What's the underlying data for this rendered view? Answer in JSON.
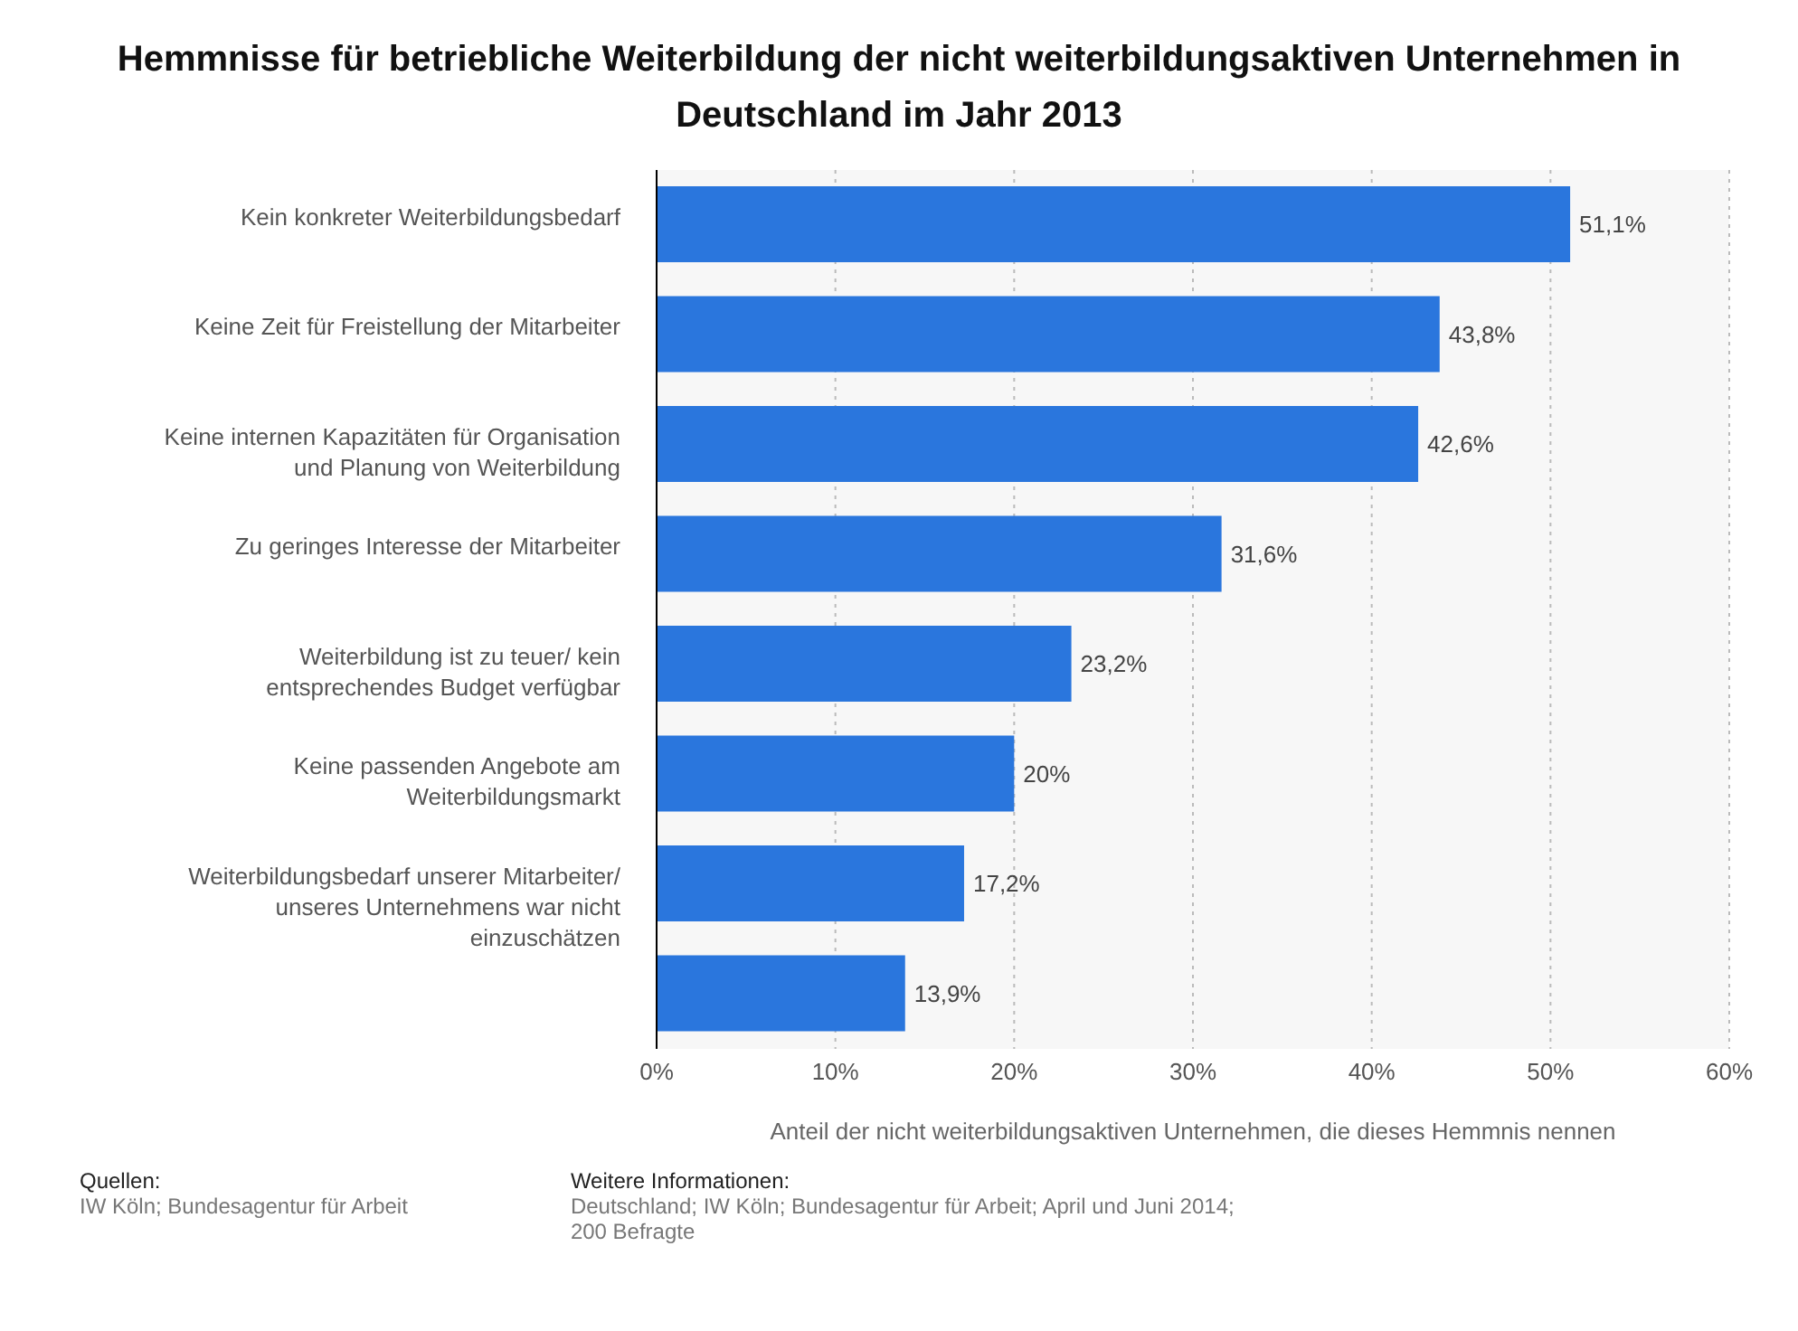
{
  "chart_data": {
    "type": "bar",
    "orientation": "horizontal",
    "title": "Hemmnisse für betriebliche Weiterbildung der nicht weiterbildungsaktiven Unternehmen in Deutschland im Jahr 2013",
    "categories": [
      "Kein konkreter Weiterbildungsbedarf",
      "Keine Zeit für Freistellung der Mitarbeiter",
      "Keine internen Kapazitäten für Organisation und Planung von Weiterbildung",
      "Zu geringes Interesse der Mitarbeiter",
      "Weiterbildung ist zu teuer/ kein entsprechendes Budget verfügbar",
      "Keine passenden Angebote am Weiterbildungsmarkt",
      "Weiterbildungsbedarf unserer Mitarbeiter/ unseres Unternehmens war nicht einzuschätzen",
      null
    ],
    "values": [
      51.1,
      43.8,
      42.6,
      31.6,
      23.2,
      20,
      17.2,
      13.9
    ],
    "value_labels": [
      "51,1%",
      "43,8%",
      "42,6%",
      "31,6%",
      "23,2%",
      "20%",
      "17,2%",
      "13,9%"
    ],
    "color": "#2a76dd",
    "xlabel": "Anteil der nicht weiterbildungsaktiven Unternehmen, die dieses Hemmnis nennen",
    "xlim": [
      0,
      60
    ],
    "xticks": [
      {
        "value": 0,
        "label": "0%"
      },
      {
        "value": 10,
        "label": "10%"
      },
      {
        "value": 20,
        "label": "20%"
      },
      {
        "value": 30,
        "label": "30%"
      },
      {
        "value": 40,
        "label": "40%"
      },
      {
        "value": 50,
        "label": "50%"
      },
      {
        "value": 60,
        "label": "60%"
      }
    ],
    "grid": "x",
    "legend": false,
    "annotations": [
      "Quellen:",
      "IW Köln; Bundesagentur für Arbeit",
      "Weitere Informationen:",
      "Deutschland; IW Köln; Bundesagentur für Arbeit; April und Juni 2014; 200 Befragte"
    ]
  }
}
